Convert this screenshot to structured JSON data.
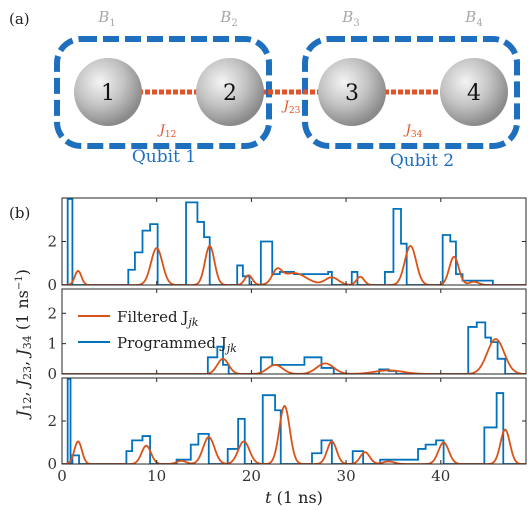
{
  "panel_a": {
    "label": "(a)",
    "qubits": [
      {
        "index": "1",
        "b_label": "B",
        "b_sub": "1"
      },
      {
        "index": "2",
        "b_label": "B",
        "b_sub": "2"
      },
      {
        "index": "3",
        "b_label": "B",
        "b_sub": "3"
      },
      {
        "index": "4",
        "b_label": "B",
        "b_sub": "4"
      }
    ],
    "couplings": [
      {
        "name": "J",
        "sub": "12"
      },
      {
        "name": "J",
        "sub": "23"
      },
      {
        "name": "J",
        "sub": "34"
      }
    ],
    "groups": [
      {
        "label": "Qubit 1"
      },
      {
        "label": "Qubit 2"
      }
    ],
    "colors": {
      "box": "#1f6fbf",
      "coupling": "#e0522a",
      "b_label": "#a8a8a8",
      "sphere": "#bdbdbd"
    }
  },
  "panel_b": {
    "label": "(b)",
    "xlabel_var": "t",
    "xlabel_unit": "(1 ns)",
    "ylabel": "J",
    "ylabel_subs": [
      "12",
      "23",
      "34"
    ],
    "ylabel_unit": "(1 ns",
    "ylabel_unit_exp": "−1",
    "ylabel_unit_close": ")",
    "legend": {
      "filtered": "Filtered J",
      "programmed": "Programmed J",
      "sub": "jk"
    },
    "colors": {
      "filtered": "#d95319",
      "programmed": "#0072bd"
    }
  },
  "chart_data": [
    {
      "type": "line",
      "xlim": [
        0,
        49
      ],
      "ylim": [
        0,
        4
      ],
      "xticks": [
        0,
        10,
        20,
        30,
        40
      ],
      "yticks": [
        0,
        2
      ],
      "grid": false,
      "series": [
        {
          "name": "Programmed J_jk",
          "steps": [
            [
              0,
              0
            ],
            [
              0.6,
              4.2
            ],
            [
              1.1,
              0
            ],
            [
              7,
              0.7
            ],
            [
              7.7,
              1.5
            ],
            [
              8.5,
              2.5
            ],
            [
              9.3,
              2.8
            ],
            [
              10.1,
              0
            ],
            [
              13.1,
              3.8
            ],
            [
              14.3,
              2.9
            ],
            [
              15,
              2.2
            ],
            [
              15.6,
              0
            ],
            [
              18.5,
              0.9
            ],
            [
              19.1,
              0.4
            ],
            [
              19.8,
              0
            ],
            [
              21,
              2.0
            ],
            [
              22.2,
              0.5
            ],
            [
              23,
              0.6
            ],
            [
              24.5,
              0.5
            ],
            [
              28.1,
              0.6
            ],
            [
              28.5,
              0
            ],
            [
              30.6,
              0.6
            ],
            [
              31.2,
              0
            ],
            [
              34.1,
              0.6
            ],
            [
              35,
              3.5
            ],
            [
              35.8,
              1.9
            ],
            [
              36.4,
              0
            ],
            [
              40.2,
              2.3
            ],
            [
              41,
              2.0
            ],
            [
              41.6,
              0.5
            ],
            [
              42.3,
              0.2
            ],
            [
              44.5,
              0.2
            ],
            [
              45.5,
              0
            ]
          ]
        },
        {
          "name": "Filtered J_jk",
          "bumps": [
            [
              1.7,
              0.65,
              0.35
            ],
            [
              10,
              1.7,
              0.6
            ],
            [
              15.6,
              1.8,
              0.5
            ],
            [
              19.7,
              0.45,
              0.4
            ],
            [
              22.7,
              0.55,
              0.5
            ],
            [
              24.5,
              0.55,
              1.3
            ],
            [
              28.5,
              0.35,
              0.7
            ],
            [
              31.5,
              0.38,
              0.4
            ],
            [
              36.8,
              1.8,
              0.6
            ],
            [
              41.4,
              1.3,
              0.5
            ],
            [
              43.5,
              0.15,
              0.5
            ]
          ]
        }
      ]
    },
    {
      "type": "line",
      "xlim": [
        0,
        49
      ],
      "ylim": [
        0,
        2.8
      ],
      "xticks": [
        0,
        10,
        20,
        30,
        40
      ],
      "yticks": [
        0,
        1,
        2
      ],
      "grid": false,
      "series": [
        {
          "name": "Programmed J_jk",
          "steps": [
            [
              0,
              0
            ],
            [
              15.4,
              0.55
            ],
            [
              16.4,
              0.9
            ],
            [
              17,
              0.3
            ],
            [
              17.6,
              0
            ],
            [
              21,
              0.55
            ],
            [
              22.2,
              0.3
            ],
            [
              25.6,
              0.55
            ],
            [
              27.4,
              0.2
            ],
            [
              28.7,
              0
            ],
            [
              33.5,
              0.15
            ],
            [
              34.5,
              0.1
            ],
            [
              35.3,
              0
            ],
            [
              42.9,
              1.55
            ],
            [
              43.8,
              1.7
            ],
            [
              44.7,
              1.2
            ],
            [
              45.3,
              1.05
            ],
            [
              46,
              0.5
            ],
            [
              46.8,
              0
            ]
          ]
        },
        {
          "name": "Filtered J_jk",
          "bumps": [
            [
              17,
              0.5,
              0.6
            ],
            [
              22.5,
              0.3,
              0.8
            ],
            [
              27.8,
              0.35,
              0.9
            ],
            [
              34.5,
              0.12,
              1.5
            ],
            [
              45.8,
              1.15,
              0.9
            ]
          ]
        }
      ]
    },
    {
      "type": "line",
      "xlim": [
        0,
        49
      ],
      "ylim": [
        0,
        4
      ],
      "xticks": [
        0,
        10,
        20,
        30,
        40
      ],
      "yticks": [
        0,
        2
      ],
      "grid": false,
      "series": [
        {
          "name": "Programmed J_jk",
          "steps": [
            [
              0,
              0
            ],
            [
              0.6,
              4.1
            ],
            [
              0.9,
              0
            ],
            [
              1.1,
              0.4
            ],
            [
              1.8,
              0
            ],
            [
              6.8,
              0.6
            ],
            [
              7.4,
              1.1
            ],
            [
              8.5,
              1.3
            ],
            [
              9.3,
              0
            ],
            [
              12.1,
              0.2
            ],
            [
              13.6,
              0.9
            ],
            [
              14.4,
              1.4
            ],
            [
              15.5,
              0
            ],
            [
              17.5,
              0.7
            ],
            [
              18.6,
              2.1
            ],
            [
              19.3,
              0
            ],
            [
              21.2,
              3.2
            ],
            [
              22.5,
              2.5
            ],
            [
              23.1,
              0
            ],
            [
              26.4,
              0.5
            ],
            [
              27.4,
              1.1
            ],
            [
              28.5,
              0
            ],
            [
              30.7,
              0.6
            ],
            [
              31.8,
              0
            ],
            [
              33.6,
              0.2
            ],
            [
              37.6,
              0.7
            ],
            [
              38.4,
              0.9
            ],
            [
              39.5,
              1.1
            ],
            [
              40.3,
              0
            ],
            [
              44.6,
              1.7
            ],
            [
              45.9,
              3.3
            ],
            [
              46.6,
              0
            ]
          ]
        },
        {
          "name": "Filtered J_jk",
          "bumps": [
            [
              1.7,
              1.05,
              0.4
            ],
            [
              8.9,
              0.85,
              0.5
            ],
            [
              12.6,
              0.15,
              0.5
            ],
            [
              15.5,
              1.25,
              0.6
            ],
            [
              19.2,
              1.05,
              0.6
            ],
            [
              23.5,
              2.7,
              0.55
            ],
            [
              28.5,
              1.05,
              0.5
            ],
            [
              32,
              0.55,
              0.5
            ],
            [
              34.5,
              0.12,
              0.6
            ],
            [
              40.3,
              1.0,
              0.55
            ],
            [
              46.8,
              1.6,
              0.5
            ]
          ]
        }
      ]
    }
  ]
}
